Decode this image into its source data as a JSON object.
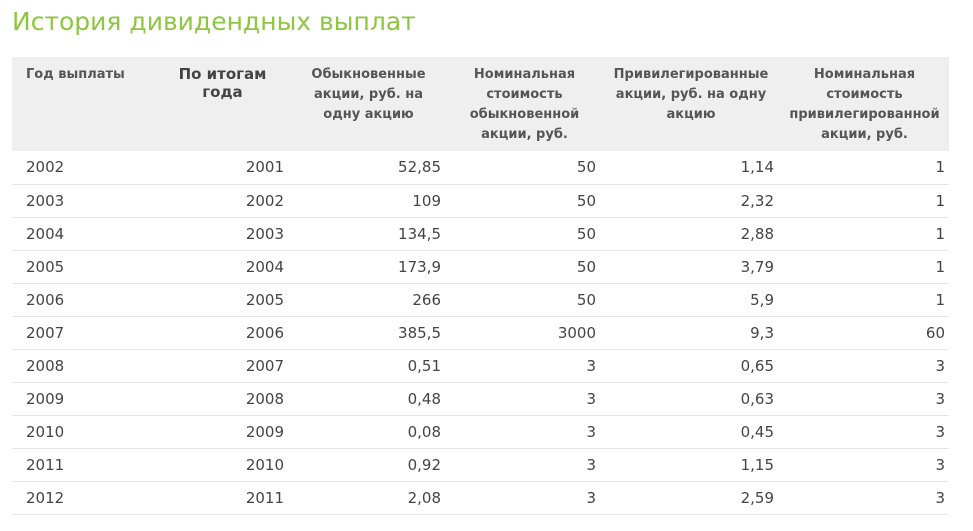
{
  "page": {
    "title": "История дивидендных выплат"
  },
  "table": {
    "headers": {
      "payment_year": "Год выплаты",
      "results_year": "По итогам года",
      "ordinary": "Обыкновенные акции, руб. на одну акцию",
      "ordinary_nominal": "Номинальная стоимость обыкновенной акции, руб.",
      "preferred": "Привилегированные акции, руб. на одну акцию",
      "preferred_nominal": "Номинальная стоимость привилегированной акции, руб."
    },
    "rows": [
      {
        "payment_year": "2002",
        "results_year": "2001",
        "ordinary": "52,85",
        "ordinary_nominal": "50",
        "preferred": "1,14",
        "preferred_nominal": "1"
      },
      {
        "payment_year": "2003",
        "results_year": "2002",
        "ordinary": "109",
        "ordinary_nominal": "50",
        "preferred": "2,32",
        "preferred_nominal": "1"
      },
      {
        "payment_year": "2004",
        "results_year": "2003",
        "ordinary": "134,5",
        "ordinary_nominal": "50",
        "preferred": "2,88",
        "preferred_nominal": "1"
      },
      {
        "payment_year": "2005",
        "results_year": "2004",
        "ordinary": "173,9",
        "ordinary_nominal": "50",
        "preferred": "3,79",
        "preferred_nominal": "1"
      },
      {
        "payment_year": "2006",
        "results_year": "2005",
        "ordinary": "266",
        "ordinary_nominal": "50",
        "preferred": "5,9",
        "preferred_nominal": "1"
      },
      {
        "payment_year": "2007",
        "results_year": "2006",
        "ordinary": "385,5",
        "ordinary_nominal": "3000",
        "preferred": "9,3",
        "preferred_nominal": "60"
      },
      {
        "payment_year": "2008",
        "results_year": "2007",
        "ordinary": "0,51",
        "ordinary_nominal": "3",
        "preferred": "0,65",
        "preferred_nominal": "3"
      },
      {
        "payment_year": "2009",
        "results_year": "2008",
        "ordinary": "0,48",
        "ordinary_nominal": "3",
        "preferred": "0,63",
        "preferred_nominal": "3"
      },
      {
        "payment_year": "2010",
        "results_year": "2009",
        "ordinary": "0,08",
        "ordinary_nominal": "3",
        "preferred": "0,45",
        "preferred_nominal": "3"
      },
      {
        "payment_year": "2011",
        "results_year": "2010",
        "ordinary": "0,92",
        "ordinary_nominal": "3",
        "preferred": "1,15",
        "preferred_nominal": "3"
      },
      {
        "payment_year": "2012",
        "results_year": "2011",
        "ordinary": "2,08",
        "ordinary_nominal": "3",
        "preferred": "2,59",
        "preferred_nominal": "3"
      }
    ]
  },
  "colors": {
    "title": "#8dc63f",
    "header_background": "#efefef",
    "row_divider": "#e6e6e6"
  }
}
